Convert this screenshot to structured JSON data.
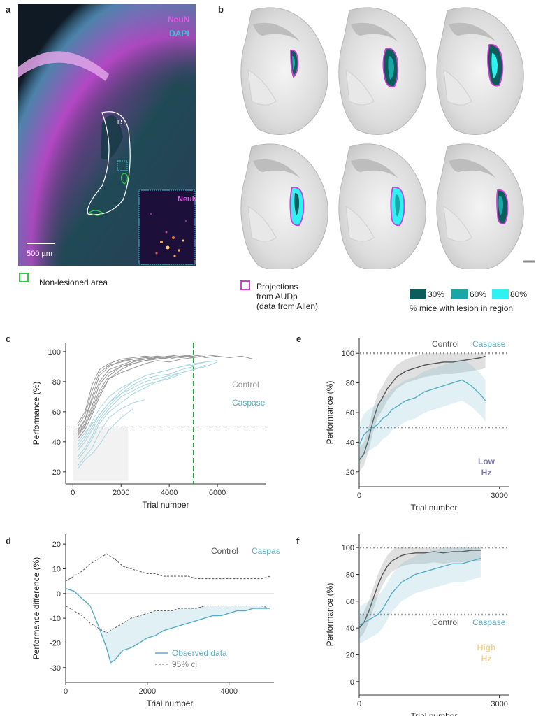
{
  "panels": {
    "a": {
      "letter": "a",
      "stain1": "NeuN",
      "stain2": "DAPI",
      "region": "TS",
      "inset_label": "NeuN",
      "scale_bar": "500 µm",
      "legend": "Non-lesioned area"
    },
    "b": {
      "letter": "b",
      "projections_legend": [
        "Projections",
        "from AUDp",
        "(data from Allen)"
      ],
      "lesion_levels": [
        "30%",
        "60%",
        "80%"
      ],
      "lesion_caption": "% mice with lesion in region"
    },
    "c": {
      "letter": "c"
    },
    "d": {
      "letter": "d"
    },
    "e": {
      "letter": "e",
      "freq_label": [
        "Low",
        "Hz"
      ]
    },
    "f": {
      "letter": "f",
      "freq_label": [
        "High",
        "Hz"
      ]
    }
  },
  "colors": {
    "control": "#555555",
    "control_light": "#9a9a9a",
    "caspase": "#5aaec3",
    "caspase_light": "#a9d6e3",
    "neun": "#d03ed6",
    "dapi": "#33c7d1",
    "lesion30": "#0d5d5d",
    "lesion60": "#1aa6a6",
    "lesion80": "#2ef2f2",
    "green": "#2ecc40",
    "lowhz": "#7d7aa8",
    "highhz": "#f3d08e"
  },
  "chart_data": [
    {
      "id": "c",
      "type": "line",
      "xlabel": "Trial number",
      "ylabel": "Performance (%)",
      "xlim": [
        -300,
        8000
      ],
      "ylim": [
        12,
        106
      ],
      "xticks": [
        0,
        2000,
        4000,
        6000
      ],
      "yticks": [
        20,
        40,
        60,
        80,
        100
      ],
      "legend": [
        "Control",
        "Caspase"
      ],
      "chance_line": 50,
      "vertical_marker": 5000,
      "series": [
        {
          "name": "Control",
          "x": [
            200,
            500,
            800,
            1100,
            1500,
            2000,
            2500,
            3000,
            3500,
            4000,
            4500,
            5000,
            5500,
            6000
          ],
          "y": [
            48,
            55,
            70,
            84,
            90,
            94,
            95,
            96,
            97,
            96,
            97,
            98,
            96,
            97
          ]
        },
        {
          "name": "Control",
          "x": [
            200,
            500,
            800,
            1100,
            1500,
            2000,
            2500,
            3000,
            3500,
            4000,
            4500,
            5000,
            5500,
            6000,
            6500,
            7000,
            7500
          ],
          "y": [
            44,
            50,
            62,
            74,
            84,
            90,
            93,
            95,
            96,
            97,
            96,
            97,
            98,
            97,
            96,
            97,
            95
          ]
        },
        {
          "name": "Control",
          "x": [
            200,
            500,
            800,
            1100,
            1500,
            2000,
            2500,
            3000,
            3500,
            4000,
            4500,
            5000
          ],
          "y": [
            50,
            58,
            74,
            86,
            91,
            93,
            95,
            96,
            95,
            97,
            96,
            98
          ]
        },
        {
          "name": "Control",
          "x": [
            200,
            500,
            800,
            1100,
            1500,
            2000,
            2500,
            3000,
            3500,
            4000,
            4500,
            5000,
            5500
          ],
          "y": [
            46,
            52,
            64,
            78,
            86,
            90,
            92,
            94,
            96,
            95,
            97,
            96,
            97
          ]
        },
        {
          "name": "Control",
          "x": [
            200,
            500,
            800,
            1100,
            1500,
            2000,
            2500,
            3000,
            3500,
            4000,
            4500
          ],
          "y": [
            52,
            60,
            78,
            88,
            92,
            95,
            96,
            97,
            96,
            97,
            98
          ]
        },
        {
          "name": "Control",
          "x": [
            200,
            500,
            800,
            1100,
            1500,
            2000,
            2500,
            3000,
            3500,
            4000
          ],
          "y": [
            42,
            48,
            58,
            70,
            82,
            88,
            92,
            94,
            95,
            96
          ]
        },
        {
          "name": "Control",
          "x": [
            200,
            500,
            800,
            1100,
            1500,
            2000,
            2500,
            3000,
            3500,
            4000,
            4500,
            5000
          ],
          "y": [
            47,
            54,
            68,
            80,
            88,
            91,
            94,
            95,
            97,
            96,
            97,
            97
          ]
        },
        {
          "name": "Control",
          "x": [
            200,
            500,
            800,
            1100,
            1500,
            2000,
            2500,
            3000,
            3500,
            4000,
            4500,
            5000
          ],
          "y": [
            45,
            51,
            60,
            72,
            82,
            86,
            89,
            92,
            94,
            93,
            95,
            96
          ]
        },
        {
          "name": "Caspase",
          "x": [
            200,
            500,
            800,
            1100,
            1500,
            2000,
            2500,
            3000,
            3500,
            4000,
            4500,
            5000,
            5500
          ],
          "y": [
            40,
            46,
            52,
            58,
            66,
            74,
            80,
            84,
            86,
            88,
            90,
            92,
            93
          ]
        },
        {
          "name": "Caspase",
          "x": [
            200,
            500,
            800,
            1100,
            1500,
            2000,
            2500,
            3000,
            3500,
            4000,
            4500,
            5000
          ],
          "y": [
            34,
            40,
            48,
            56,
            64,
            72,
            78,
            82,
            84,
            85,
            88,
            90
          ]
        },
        {
          "name": "Caspase",
          "x": [
            200,
            500,
            800,
            1100,
            1500,
            2000,
            2500,
            3000,
            3500,
            4000,
            4500
          ],
          "y": [
            30,
            36,
            44,
            54,
            62,
            70,
            74,
            78,
            80,
            82,
            85
          ]
        },
        {
          "name": "Caspase",
          "x": [
            200,
            500,
            800,
            1100,
            1500,
            2000,
            2500,
            3000,
            3500,
            4000,
            4500,
            5000,
            5500,
            6000
          ],
          "y": [
            28,
            34,
            42,
            52,
            60,
            66,
            72,
            76,
            80,
            83,
            86,
            88,
            90,
            93
          ]
        },
        {
          "name": "Caspase",
          "x": [
            200,
            500,
            800,
            1100,
            1500,
            2000,
            2500,
            3000
          ],
          "y": [
            24,
            30,
            36,
            46,
            56,
            62,
            66,
            68
          ]
        },
        {
          "name": "Caspase",
          "x": [
            200,
            500,
            800,
            1100,
            1500,
            2000,
            2500
          ],
          "y": [
            22,
            28,
            32,
            38,
            48,
            56,
            62
          ]
        },
        {
          "name": "Caspase",
          "x": [
            200,
            500,
            800,
            1100,
            1500,
            2000,
            2500,
            3000,
            3500,
            4000,
            4500,
            5000,
            5500
          ],
          "y": [
            36,
            42,
            50,
            58,
            66,
            72,
            76,
            80,
            82,
            84,
            86,
            88,
            91
          ]
        },
        {
          "name": "Caspase",
          "x": [
            200,
            500,
            800,
            1100,
            1500,
            2000,
            2500,
            3000,
            3500,
            4000,
            4500,
            5000,
            5500,
            6000
          ],
          "y": [
            38,
            44,
            54,
            62,
            70,
            76,
            80,
            84,
            86,
            88,
            90,
            91,
            93,
            94
          ]
        }
      ]
    },
    {
      "id": "d",
      "type": "line",
      "xlabel": "Trial number",
      "ylabel": "Performance difference (%)",
      "xlim": [
        0,
        5100
      ],
      "ylim": [
        -36,
        24
      ],
      "xticks": [
        0,
        2000,
        4000
      ],
      "yticks": [
        -30,
        -20,
        -10,
        0,
        10,
        20
      ],
      "legend_top": [
        "Control",
        "Caspase"
      ],
      "legend": [
        "Observed data",
        "95% ci"
      ],
      "series": [
        {
          "name": "Observed data",
          "x": [
            0,
            200,
            400,
            600,
            800,
            1000,
            1100,
            1200,
            1300,
            1400,
            1600,
            1800,
            2000,
            2200,
            2400,
            2600,
            2800,
            3000,
            3200,
            3400,
            3600,
            3800,
            4000,
            4200,
            4400,
            4600,
            4800,
            5000
          ],
          "y": [
            2,
            1,
            -2,
            -5,
            -13,
            -22,
            -28,
            -27,
            -25,
            -23,
            -22,
            -20,
            -18,
            -17,
            -15,
            -14,
            -13,
            -12,
            -11,
            -10,
            -9,
            -9,
            -8,
            -7,
            -7,
            -6,
            -6,
            -6
          ]
        },
        {
          "name": "95% ci upper",
          "x": [
            0,
            200,
            400,
            600,
            800,
            1000,
            1200,
            1400,
            1600,
            1800,
            2000,
            2200,
            2400,
            2600,
            2800,
            3000,
            3200,
            3400,
            3600,
            3800,
            4000,
            4200,
            4400,
            4600,
            4800,
            5000
          ],
          "y": [
            5,
            7,
            9,
            12,
            14,
            16,
            14,
            11,
            10,
            9,
            8,
            8,
            7,
            7,
            7,
            7,
            6,
            6,
            6,
            6,
            6,
            6,
            6,
            6,
            6,
            7
          ]
        },
        {
          "name": "95% ci lower",
          "x": [
            0,
            200,
            400,
            600,
            800,
            1000,
            1200,
            1400,
            1600,
            1800,
            2000,
            2200,
            2400,
            2600,
            2800,
            3000,
            3200,
            3400,
            3600,
            3800,
            4000,
            4200,
            4400,
            4600,
            4800,
            5000
          ],
          "y": [
            -5,
            -7,
            -9,
            -12,
            -14,
            -16,
            -14,
            -12,
            -10,
            -9,
            -8,
            -7,
            -7,
            -7,
            -6,
            -6,
            -6,
            -5,
            -5,
            -5,
            -5,
            -5,
            -5,
            -5,
            -5,
            -6
          ]
        }
      ]
    },
    {
      "id": "e",
      "type": "line",
      "xlabel": "Trial number",
      "ylabel": "Performance (%)",
      "xlim": [
        0,
        3200
      ],
      "ylim": [
        10,
        110
      ],
      "xticks": [
        0,
        3000
      ],
      "yticks": [
        20,
        40,
        60,
        80,
        100
      ],
      "legend": [
        "Control",
        "Caspase"
      ],
      "hlines": [
        50,
        100
      ],
      "series": [
        {
          "name": "Control",
          "x": [
            0,
            100,
            200,
            300,
            400,
            500,
            600,
            700,
            800,
            900,
            1000,
            1200,
            1400,
            1600,
            1800,
            2000,
            2200,
            2400,
            2600,
            2700
          ],
          "y": [
            28,
            32,
            42,
            55,
            65,
            70,
            76,
            80,
            84,
            86,
            88,
            90,
            92,
            93,
            94,
            94,
            95,
            96,
            97,
            98
          ]
        },
        {
          "name": "Caspase",
          "x": [
            0,
            100,
            200,
            300,
            400,
            500,
            600,
            700,
            800,
            900,
            1000,
            1200,
            1400,
            1600,
            1800,
            2000,
            2200,
            2400,
            2600,
            2700
          ],
          "y": [
            38,
            45,
            48,
            50,
            52,
            56,
            58,
            62,
            64,
            66,
            68,
            70,
            74,
            76,
            78,
            80,
            82,
            78,
            72,
            68
          ]
        }
      ]
    },
    {
      "id": "f",
      "type": "line",
      "xlabel": "Trial number",
      "ylabel": "Performance (%)",
      "xlim": [
        0,
        3200
      ],
      "ylim": [
        -10,
        110
      ],
      "xticks": [
        0,
        3000
      ],
      "yticks": [
        0,
        20,
        40,
        60,
        80,
        100
      ],
      "legend": [
        "Control",
        "Caspase"
      ],
      "hlines": [
        50,
        100
      ],
      "series": [
        {
          "name": "Control",
          "x": [
            0,
            100,
            200,
            300,
            400,
            500,
            600,
            700,
            800,
            900,
            1000,
            1200,
            1400,
            1600,
            1800,
            2000,
            2200,
            2400,
            2600
          ],
          "y": [
            40,
            44,
            52,
            62,
            72,
            80,
            86,
            90,
            92,
            94,
            95,
            96,
            96,
            97,
            96,
            97,
            97,
            98,
            98
          ]
        },
        {
          "name": "Caspase",
          "x": [
            0,
            100,
            200,
            300,
            400,
            500,
            600,
            700,
            800,
            900,
            1000,
            1200,
            1400,
            1600,
            1800,
            2000,
            2200,
            2400,
            2600
          ],
          "y": [
            42,
            44,
            46,
            48,
            50,
            54,
            60,
            66,
            70,
            74,
            76,
            80,
            82,
            84,
            86,
            88,
            88,
            90,
            92
          ]
        }
      ]
    }
  ]
}
